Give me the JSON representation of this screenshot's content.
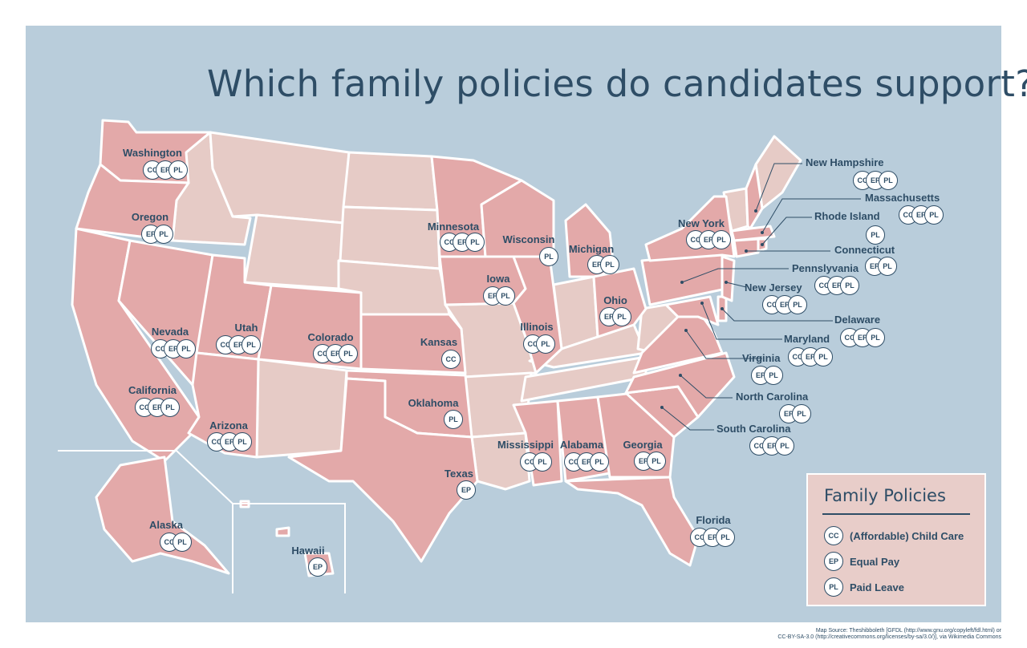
{
  "title": "Which family policies do candidates support?",
  "colors": {
    "background": "#b9cddb",
    "supporting_state": "#e3a9a9",
    "other_state": "#e6cbc6",
    "text": "#2e4d66"
  },
  "policy_codes": {
    "CC": "(Affordable) Child Care",
    "EP": "Equal Pay",
    "PL": "Paid Leave"
  },
  "legend": {
    "title": "Family Policies",
    "items": [
      {
        "code": "CC",
        "label": "(Affordable) Child Care"
      },
      {
        "code": "EP",
        "label": "Equal Pay"
      },
      {
        "code": "PL",
        "label": "Paid Leave"
      }
    ]
  },
  "states": [
    {
      "name": "Washington",
      "policies": [
        "CC",
        "EP",
        "PL"
      ]
    },
    {
      "name": "Oregon",
      "policies": [
        "EP",
        "PL"
      ]
    },
    {
      "name": "California",
      "policies": [
        "CC",
        "EP",
        "PL"
      ]
    },
    {
      "name": "Nevada",
      "policies": [
        "CC",
        "EP",
        "PL"
      ]
    },
    {
      "name": "Utah",
      "policies": [
        "CC",
        "EP",
        "PL"
      ]
    },
    {
      "name": "Arizona",
      "policies": [
        "CC",
        "EP",
        "PL"
      ]
    },
    {
      "name": "Colorado",
      "policies": [
        "CC",
        "EP",
        "PL"
      ]
    },
    {
      "name": "Kansas",
      "policies": [
        "CC"
      ]
    },
    {
      "name": "Oklahoma",
      "policies": [
        "PL"
      ]
    },
    {
      "name": "Texas",
      "policies": [
        "EP"
      ]
    },
    {
      "name": "Minnesota",
      "policies": [
        "CC",
        "EP",
        "PL"
      ]
    },
    {
      "name": "Iowa",
      "policies": [
        "EP",
        "PL"
      ]
    },
    {
      "name": "Wisconsin",
      "policies": [
        "PL"
      ]
    },
    {
      "name": "Illinois",
      "policies": [
        "CC",
        "PL"
      ]
    },
    {
      "name": "Michigan",
      "policies": [
        "EP",
        "PL"
      ]
    },
    {
      "name": "Ohio",
      "policies": [
        "EP",
        "PL"
      ]
    },
    {
      "name": "Mississippi",
      "policies": [
        "CC",
        "PL"
      ]
    },
    {
      "name": "Alabama",
      "policies": [
        "CC",
        "EP",
        "PL"
      ]
    },
    {
      "name": "Georgia",
      "policies": [
        "EP",
        "PL"
      ]
    },
    {
      "name": "Florida",
      "policies": [
        "CC",
        "EP",
        "PL"
      ]
    },
    {
      "name": "New York",
      "policies": [
        "CC",
        "EP",
        "PL"
      ]
    },
    {
      "name": "New Hampshire",
      "policies": [
        "CC",
        "EP",
        "PL"
      ]
    },
    {
      "name": "Massachusetts",
      "policies": [
        "CC",
        "EP",
        "PL"
      ]
    },
    {
      "name": "Rhode Island",
      "policies": [
        "PL"
      ]
    },
    {
      "name": "Connecticut",
      "policies": [
        "EP",
        "PL"
      ]
    },
    {
      "name": "Pennslyvania",
      "policies": [
        "CC",
        "EP",
        "PL"
      ]
    },
    {
      "name": "New Jersey",
      "policies": [
        "CC",
        "EP",
        "PL"
      ]
    },
    {
      "name": "Delaware",
      "policies": [
        "CC",
        "EP",
        "PL"
      ]
    },
    {
      "name": "Maryland",
      "policies": [
        "CC",
        "EP",
        "PL"
      ]
    },
    {
      "name": "Virginia",
      "policies": [
        "EP",
        "PL"
      ]
    },
    {
      "name": "North Carolina",
      "policies": [
        "EP",
        "PL"
      ]
    },
    {
      "name": "South Carolina",
      "policies": [
        "CC",
        "EP",
        "PL"
      ]
    },
    {
      "name": "Alaska",
      "policies": [
        "CC",
        "PL"
      ]
    },
    {
      "name": "Hawaii",
      "policies": [
        "EP"
      ]
    }
  ],
  "credit": {
    "line1": "Map Source: Theshibboleth [GFDL (http://www.gnu.org/copyleft/fdl.html) or",
    "line2": "CC-BY-SA-3.0 (http://creativecommons.org/licenses/by-sa/3.0/)], via Wikimedia Commons"
  }
}
